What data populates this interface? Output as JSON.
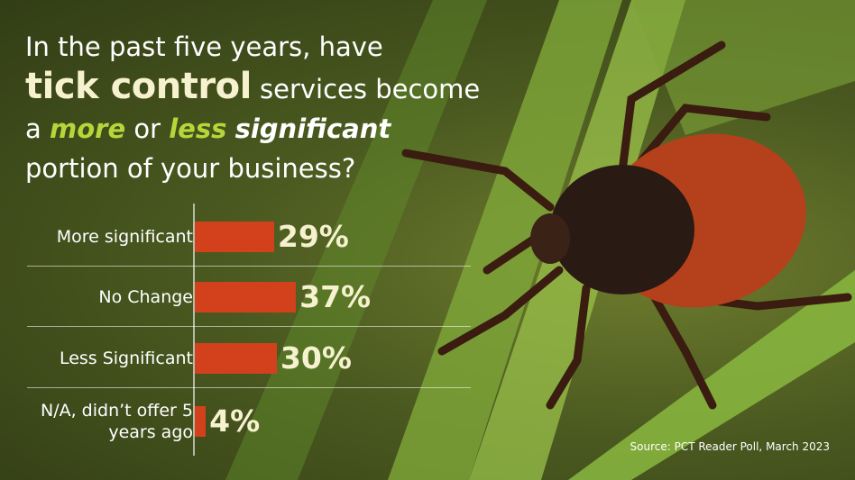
{
  "chart_data": {
    "type": "bar",
    "title": [
      "In the past five years, have",
      "tick control",
      "services become",
      "a",
      "more",
      "or",
      "less",
      "significant",
      "portion of your business?"
    ],
    "categories": [
      "More significant",
      "No Change",
      "Less Significant",
      "N/A, didn’t offer 5 years ago"
    ],
    "values": [
      29,
      37,
      30,
      4
    ],
    "value_labels": [
      "29%",
      "37%",
      "30%",
      "4%"
    ],
    "color": "#d2411b",
    "source": "Source: PCT Reader Poll, March 2023"
  }
}
